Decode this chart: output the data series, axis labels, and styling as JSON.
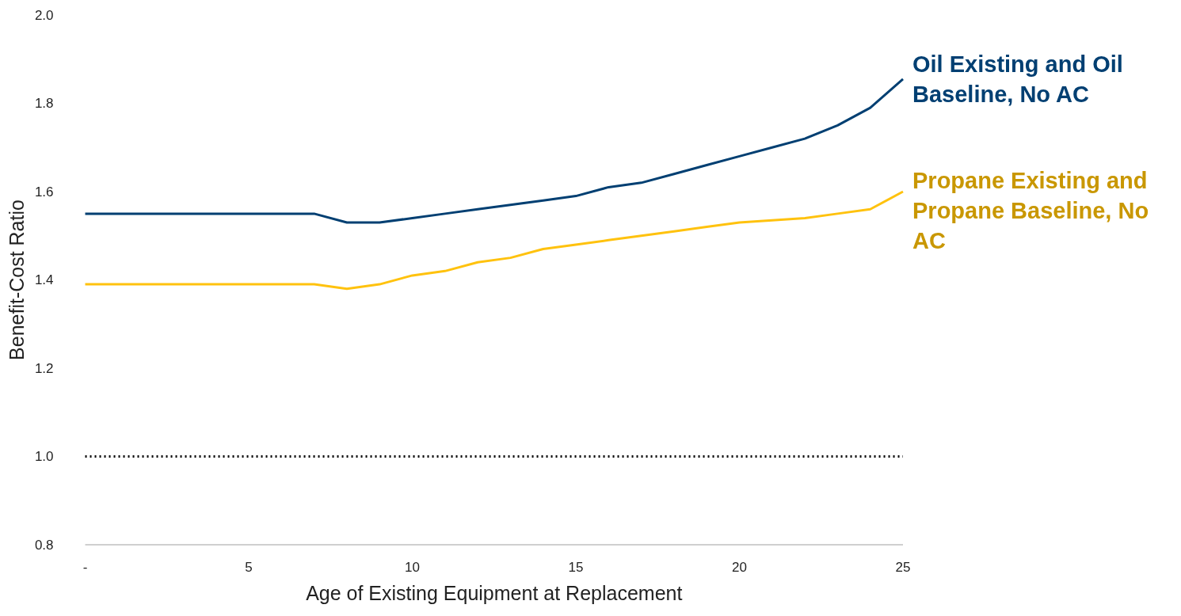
{
  "chart_data": {
    "type": "line",
    "xlabel": "Age of Existing Equipment at Replacement",
    "ylabel": "Benefit-Cost Ratio",
    "x": [
      0,
      1,
      2,
      3,
      4,
      5,
      6,
      7,
      8,
      9,
      10,
      11,
      12,
      13,
      14,
      15,
      16,
      17,
      18,
      19,
      20,
      21,
      22,
      23,
      24,
      25
    ],
    "series": [
      {
        "name": "Oil Existing and Oil Baseline, No AC",
        "color": "#003f72",
        "values": [
          1.55,
          1.55,
          1.55,
          1.55,
          1.55,
          1.55,
          1.55,
          1.55,
          1.53,
          1.53,
          1.54,
          1.55,
          1.56,
          1.57,
          1.58,
          1.59,
          1.61,
          1.62,
          1.64,
          1.66,
          1.68,
          1.7,
          1.72,
          1.75,
          1.79,
          1.855
        ]
      },
      {
        "name": "Propane Existing and Propane Baseline, No AC",
        "color": "#ffc20e",
        "values": [
          1.39,
          1.39,
          1.39,
          1.39,
          1.39,
          1.39,
          1.39,
          1.39,
          1.38,
          1.39,
          1.41,
          1.42,
          1.44,
          1.45,
          1.47,
          1.48,
          1.49,
          1.5,
          1.51,
          1.52,
          1.53,
          1.535,
          1.54,
          1.55,
          1.56,
          1.6
        ]
      }
    ],
    "xlim": [
      0,
      25
    ],
    "xticks": [
      {
        "value": 0,
        "label": "-"
      },
      5,
      10,
      15,
      20,
      25
    ],
    "ylim": [
      0.8,
      2.0
    ],
    "yticks": [
      0.8,
      {
        "value": 1.0,
        "label": "1.0"
      },
      1.2,
      1.4,
      1.6,
      1.8,
      {
        "value": 2.0,
        "label": "2.0"
      }
    ],
    "ref_lines": [
      {
        "axis": "y",
        "value": 1.0,
        "color": "#000000",
        "line_style": "dotted"
      }
    ],
    "grid": false,
    "legend": false,
    "marker": "none",
    "line_style": "solid"
  }
}
